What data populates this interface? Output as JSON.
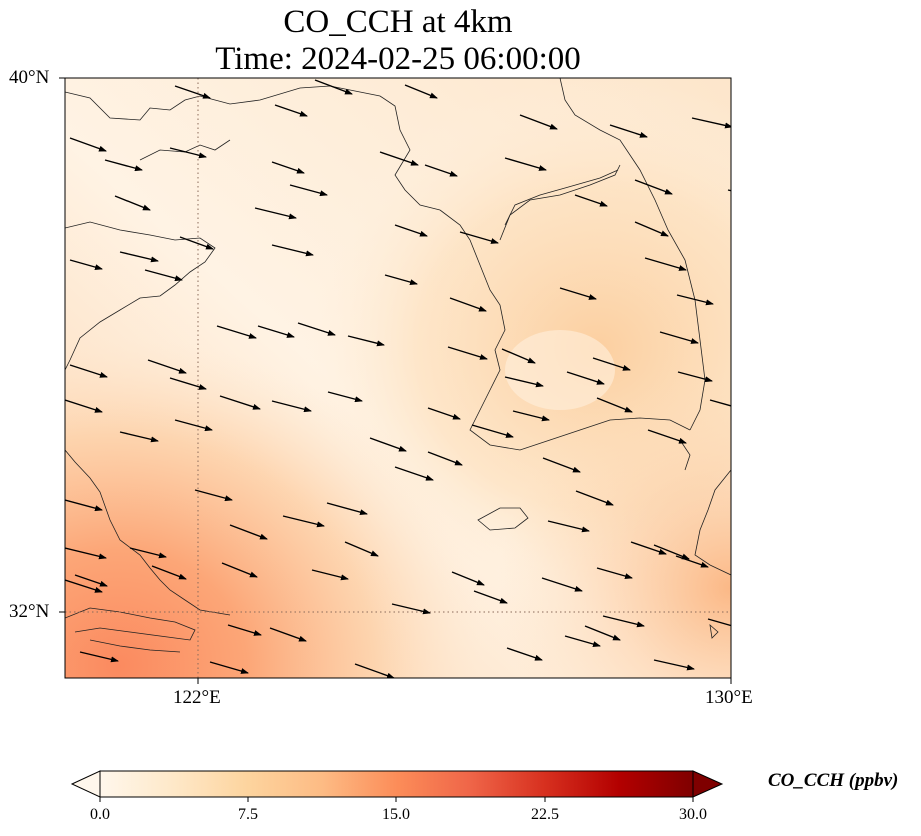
{
  "title": {
    "line1": "CO_CCH at 4km",
    "line2": "Time: 2024-02-25 06:00:00"
  },
  "axes": {
    "x_ticks": [
      "122°E",
      "130°E"
    ],
    "y_ticks": [
      "40°N",
      "32°N"
    ],
    "gridlines": "dotted"
  },
  "colorbar": {
    "label": "CO_CCH (ppbv)",
    "ticks": [
      "0.0",
      "7.5",
      "15.0",
      "22.5",
      "30.0"
    ],
    "min": 0,
    "max": 30,
    "extend": "both",
    "colormap": "OrRd",
    "colors": [
      "#fff7ec",
      "#fee8c8",
      "#fdd49e",
      "#fdbb84",
      "#fc8d59",
      "#ef6548",
      "#d7301f",
      "#b30000",
      "#7f0000"
    ]
  },
  "map": {
    "region": "Yellow Sea / Korean Peninsula",
    "field_description_colors": {
      "low": "#fff5e8",
      "mid": "#fddcaf",
      "high": "#fc9c6c"
    },
    "wind_vectors": "black arrows, west-north-westerly flow"
  }
}
